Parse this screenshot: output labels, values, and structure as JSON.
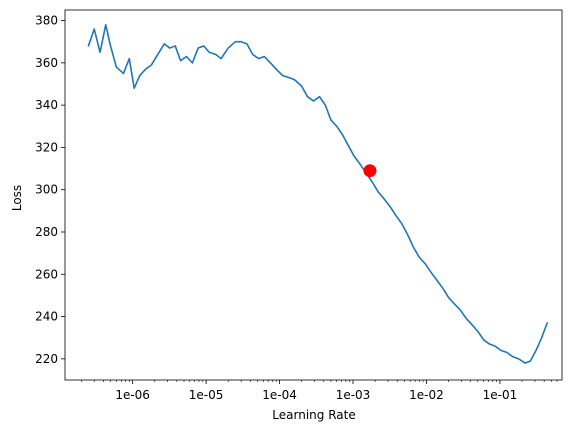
{
  "chart_data": {
    "type": "line",
    "title": "",
    "xlabel": "Learning Rate",
    "ylabel": "Loss",
    "xscale": "log",
    "xlim": [
      1.2e-07,
      0.7
    ],
    "ylim": [
      210,
      385
    ],
    "grid": false,
    "legend": "none",
    "x_ticks": [
      {
        "value": 1e-06,
        "label": "1e-06"
      },
      {
        "value": 1e-05,
        "label": "1e-05"
      },
      {
        "value": 0.0001,
        "label": "1e-04"
      },
      {
        "value": 0.001,
        "label": "1e-03"
      },
      {
        "value": 0.01,
        "label": "1e-02"
      },
      {
        "value": 0.1,
        "label": "1e-01"
      }
    ],
    "y_ticks": [
      220,
      240,
      260,
      280,
      300,
      320,
      340,
      360,
      380
    ],
    "series": [
      {
        "color": "#1f77b4",
        "x": [
          2.5e-07,
          3e-07,
          3.6e-07,
          4.3e-07,
          5e-07,
          6e-07,
          7.5e-07,
          9e-07,
          1.05e-06,
          1.25e-06,
          1.5e-06,
          1.8e-06,
          2.2e-06,
          2.7e-06,
          3.2e-06,
          3.8e-06,
          4.5e-06,
          5.4e-06,
          6.5e-06,
          7.8e-06,
          9.3e-06,
          1.1e-05,
          1.35e-05,
          1.6e-05,
          2e-05,
          2.5e-05,
          3e-05,
          3.6e-05,
          4.3e-05,
          5.2e-05,
          6.2e-05,
          7.5e-05,
          9e-05,
          0.00011,
          0.000135,
          0.00016,
          0.0002,
          0.00024,
          0.00029,
          0.00035,
          0.00042,
          0.0005,
          0.0006,
          0.00072,
          0.00086,
          0.00103,
          0.00125,
          0.0015,
          0.0018,
          0.0022,
          0.0026,
          0.0032,
          0.0038,
          0.0046,
          0.0055,
          0.0066,
          0.008,
          0.0096,
          0.0115,
          0.014,
          0.017,
          0.02,
          0.024,
          0.029,
          0.035,
          0.042,
          0.05,
          0.06,
          0.072,
          0.086,
          0.103,
          0.125,
          0.15,
          0.18,
          0.22,
          0.26,
          0.31,
          0.37,
          0.44
        ],
        "y": [
          368,
          376,
          365,
          378,
          368,
          358,
          355,
          362,
          348,
          354,
          357,
          359,
          364,
          369,
          367,
          368,
          361,
          363,
          360,
          367,
          368,
          365,
          364,
          362,
          367,
          370,
          370,
          369,
          364,
          362,
          363,
          360,
          357,
          354,
          353,
          352,
          349,
          344,
          342,
          344,
          340,
          333,
          330,
          326,
          321,
          316,
          312,
          308,
          304,
          299,
          296,
          292,
          288,
          284,
          279,
          273,
          268,
          265,
          261,
          257,
          253,
          249,
          246,
          243,
          239,
          236,
          233,
          229,
          227,
          226,
          224,
          223,
          221,
          220,
          218,
          219,
          224,
          230,
          237
        ]
      }
    ],
    "marker": {
      "x": 0.0017,
      "y": 309,
      "color": "#ff0000"
    }
  }
}
